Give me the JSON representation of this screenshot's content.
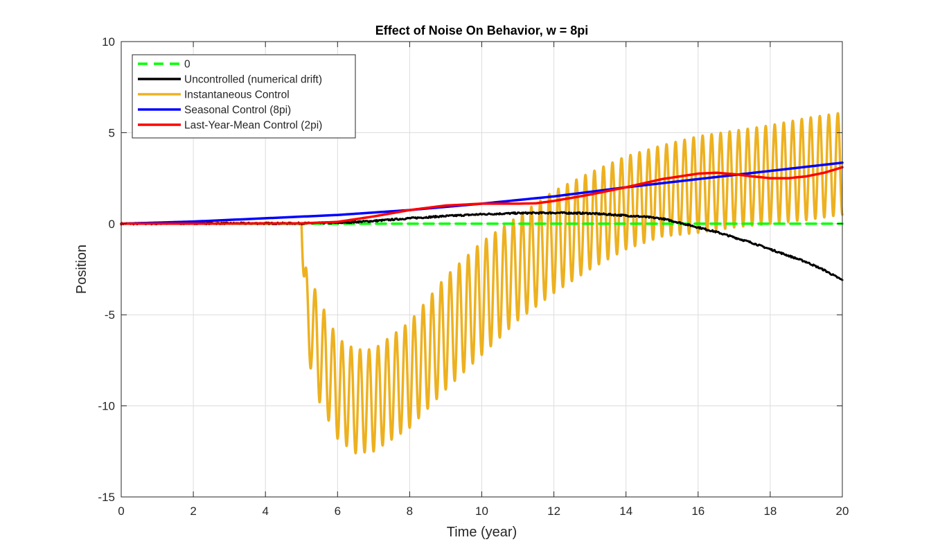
{
  "chart_data": {
    "type": "line",
    "title": "Effect of Noise On Behavior, w = 8pi",
    "xlabel": "Time (year)",
    "ylabel": "Position",
    "xlim": [
      0,
      20
    ],
    "ylim": [
      -15,
      10
    ],
    "xticks": [
      0,
      2,
      4,
      6,
      8,
      10,
      12,
      14,
      16,
      18,
      20
    ],
    "xtick_labels": [
      "0",
      "2",
      "4",
      "6",
      "8",
      "10",
      "12",
      "14",
      "16",
      "18",
      "20"
    ],
    "yticks": [
      -15,
      -10,
      -5,
      0,
      5,
      10
    ],
    "ytick_labels": [
      "-15",
      "-10",
      "-5",
      "0",
      "5",
      "10"
    ],
    "grid": true,
    "legend_location": "top-left",
    "series": [
      {
        "name": "0",
        "color": "#00ff00",
        "style": "dashed",
        "x": [
          0,
          20
        ],
        "y": [
          0,
          0
        ]
      },
      {
        "name": "Uncontrolled (numerical drift)",
        "color": "#000000",
        "style": "solid-noisy",
        "x": [
          0,
          2,
          4,
          5,
          6,
          7,
          8,
          9,
          10,
          11,
          12,
          13,
          14,
          14.5,
          15,
          15.5,
          16,
          16.5,
          17,
          17.5,
          18,
          18.5,
          19,
          19.5,
          20
        ],
        "y": [
          0,
          0.02,
          0.02,
          0.02,
          0.05,
          0.15,
          0.3,
          0.42,
          0.52,
          0.58,
          0.6,
          0.57,
          0.45,
          0.38,
          0.28,
          0.05,
          -0.2,
          -0.45,
          -0.75,
          -1.05,
          -1.4,
          -1.75,
          -2.1,
          -2.55,
          -3.1
        ]
      },
      {
        "name": "Instantaneous Control",
        "color": "#edb120",
        "style": "oscillating",
        "oscillation_frequency_per_year": 4,
        "start_x": 5,
        "x": [
          0,
          5,
          5.1,
          5.5,
          6,
          6.5,
          7,
          8,
          9,
          10,
          11,
          12,
          13,
          14,
          15,
          16,
          17,
          18,
          19,
          20
        ],
        "lower": [
          0,
          0,
          -6.8,
          -9.8,
          -11.8,
          -12.6,
          -12.5,
          -11.2,
          -9.1,
          -7.2,
          -5.3,
          -3.8,
          -2.5,
          -1.4,
          -0.7,
          -0.5,
          -0.2,
          0,
          0.2,
          0.5
        ],
        "upper": [
          0,
          0,
          -2.3,
          -4.2,
          -6.3,
          -6.9,
          -6.9,
          -5.4,
          -2.9,
          -1.0,
          0.4,
          1.8,
          2.8,
          3.7,
          4.3,
          4.8,
          5.1,
          5.4,
          5.8,
          6.1
        ]
      },
      {
        "name": "Seasonal Control (8pi)",
        "color": "#0000ff",
        "style": "solid",
        "x": [
          0,
          2,
          4,
          6,
          8,
          10,
          12,
          14,
          16,
          18,
          20
        ],
        "y": [
          0,
          0.12,
          0.3,
          0.48,
          0.75,
          1.1,
          1.5,
          2.0,
          2.45,
          2.9,
          3.35
        ]
      },
      {
        "name": "Last-Year-Mean Control (2pi)",
        "color": "#ff0000",
        "style": "solid",
        "x": [
          0,
          2,
          4,
          5,
          6,
          7,
          8,
          9,
          10,
          11,
          11.5,
          12,
          13,
          14,
          15,
          16,
          16.5,
          17,
          17.5,
          18,
          18.5,
          19,
          19.5,
          20
        ],
        "y": [
          0,
          0,
          0.02,
          0.02,
          0.1,
          0.4,
          0.75,
          1.0,
          1.1,
          1.1,
          1.12,
          1.25,
          1.6,
          2.0,
          2.45,
          2.75,
          2.8,
          2.72,
          2.6,
          2.5,
          2.5,
          2.6,
          2.8,
          3.1
        ]
      }
    ]
  }
}
